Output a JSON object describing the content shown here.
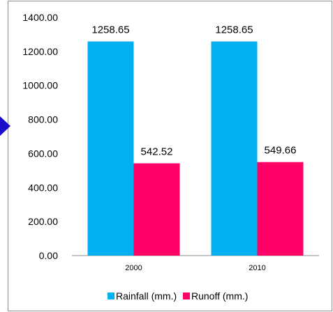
{
  "chart_data": {
    "type": "bar",
    "categories": [
      "2000",
      "2010"
    ],
    "series": [
      {
        "name": "Rainfall (mm.)",
        "values": [
          1258.65,
          1258.65
        ],
        "color": "#00b0f0"
      },
      {
        "name": "Runoff (mm.)",
        "values": [
          542.52,
          549.66
        ],
        "color": "#ff0066"
      }
    ],
    "data_labels": [
      [
        "1258.65",
        "1258.65"
      ],
      [
        "542.52",
        "549.66"
      ]
    ],
    "ylim": [
      0,
      1400
    ],
    "y_ticks": [
      "0.00",
      "200.00",
      "400.00",
      "600.00",
      "800.00",
      "1000.00",
      "1200.00",
      "1400.00"
    ],
    "y_tick_values": [
      0,
      200,
      400,
      600,
      800,
      1000,
      1200,
      1400
    ],
    "grid": false,
    "legend_position": "bottom",
    "title": "",
    "xlabel": "",
    "ylabel": ""
  },
  "pointer_color": "#1a0dcc",
  "pointer_icon": "arrow-pointer-icon"
}
